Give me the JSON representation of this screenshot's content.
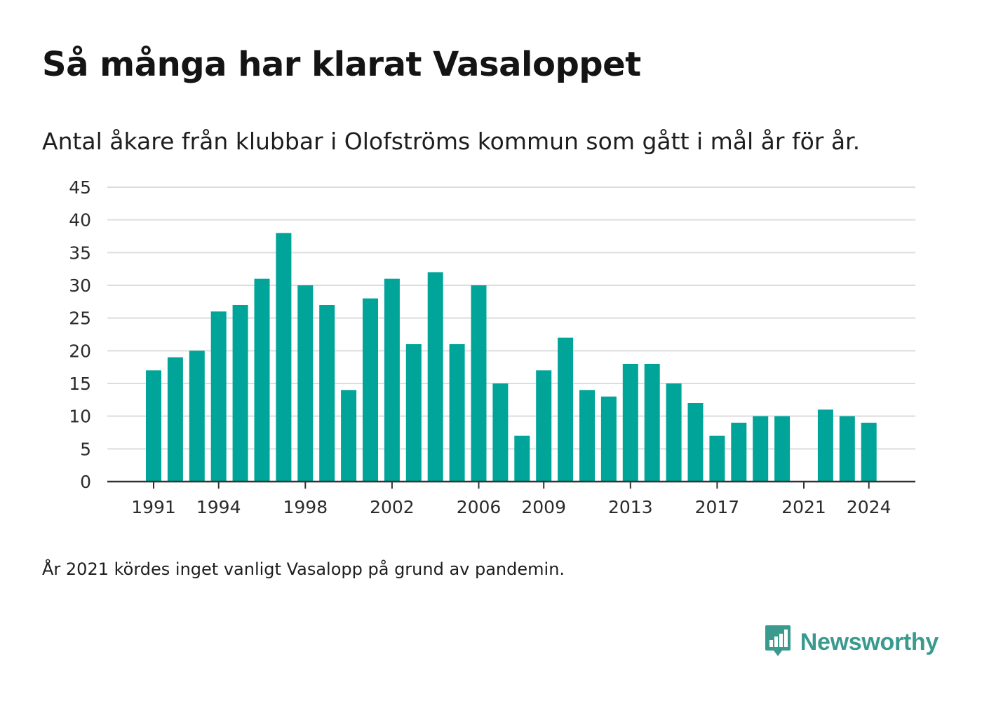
{
  "title": "Så många har klarat Vasaloppet",
  "subtitle": "Antal åkare från klubbar i Olofströms kommun som gått i mål år för år.",
  "footnote": "År 2021 kördes inget vanligt Vasalopp på grund av pandemin.",
  "brand": {
    "name": "Newsworthy",
    "logo_icon": "newsworthy-chart-bubble-icon",
    "color": "#3a9a8e"
  },
  "colors": {
    "bar": "#00a499",
    "grid": "#dddddd",
    "axis": "#333333"
  },
  "chart_data": {
    "type": "bar",
    "title": "Så många har klarat Vasaloppet",
    "subtitle": "Antal åkare från klubbar i Olofströms kommun som gått i mål år för år.",
    "xlabel": "",
    "ylabel": "",
    "ylim": [
      0,
      45
    ],
    "yticks": [
      0,
      5,
      10,
      15,
      20,
      25,
      30,
      35,
      40,
      45
    ],
    "xticks": [
      1991,
      1994,
      1998,
      2002,
      2006,
      2009,
      2013,
      2017,
      2021,
      2024
    ],
    "grid": true,
    "x": [
      1991,
      1992,
      1993,
      1994,
      1995,
      1996,
      1997,
      1998,
      1999,
      2000,
      2001,
      2002,
      2003,
      2004,
      2005,
      2006,
      2007,
      2008,
      2009,
      2010,
      2011,
      2012,
      2013,
      2014,
      2015,
      2016,
      2017,
      2018,
      2019,
      2020,
      2021,
      2022,
      2023,
      2024
    ],
    "values": [
      17,
      19,
      20,
      26,
      27,
      31,
      38,
      30,
      27,
      14,
      28,
      31,
      21,
      32,
      21,
      30,
      15,
      7,
      17,
      22,
      14,
      13,
      18,
      18,
      15,
      12,
      7,
      9,
      10,
      10,
      0,
      11,
      10,
      9
    ]
  }
}
